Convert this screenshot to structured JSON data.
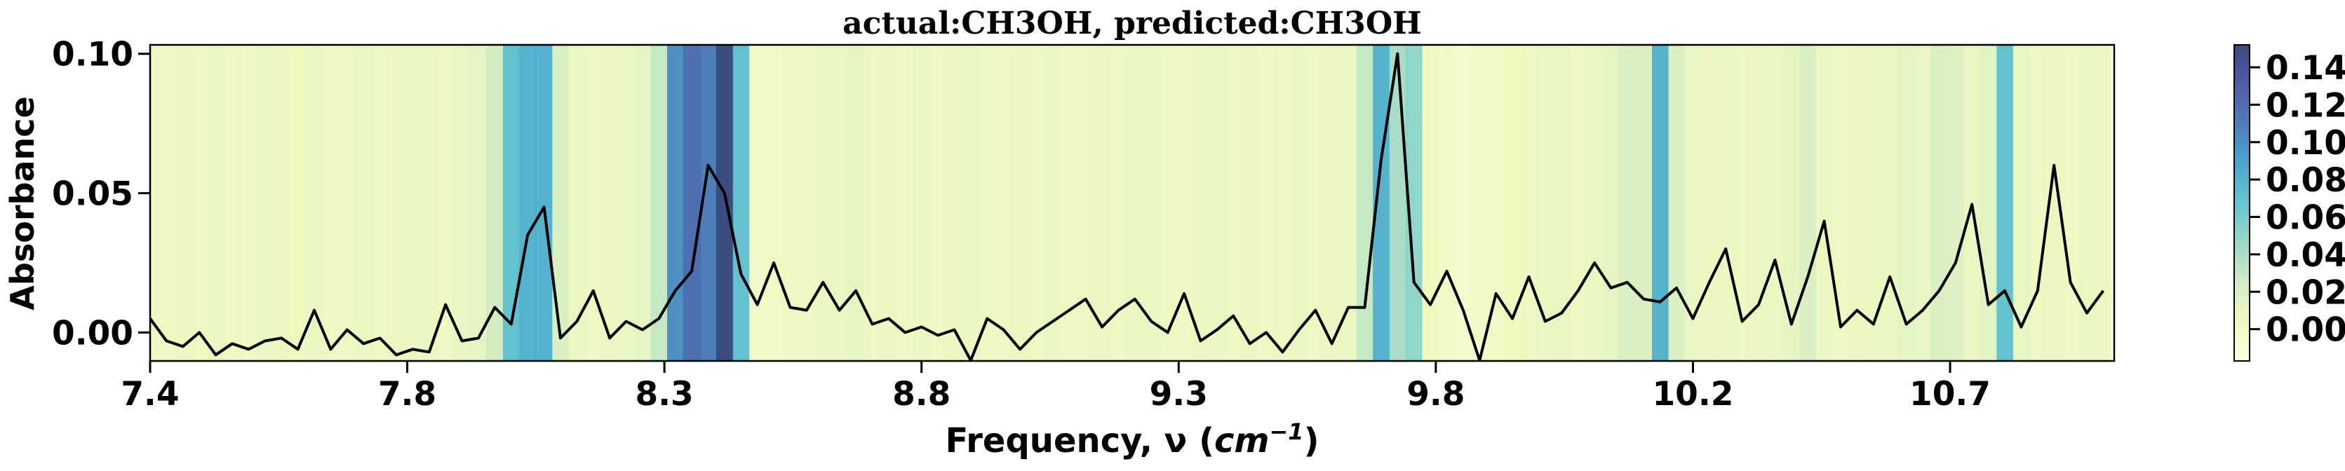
{
  "chart_data": {
    "type": "line",
    "title": "actual:CH3OH, predicted:CH3OH",
    "xlabel": [
      "Frequency, ν (",
      "cm",
      "−1",
      ")"
    ],
    "ylabel": "Absorbance",
    "xlim": [
      7.4,
      10.99
    ],
    "ylim": [
      -0.0102,
      0.1032
    ],
    "xticks": [
      {
        "value": 7.4,
        "label": "7.4"
      },
      {
        "value": 7.87,
        "label": "7.8"
      },
      {
        "value": 8.34,
        "label": "8.3"
      },
      {
        "value": 8.81,
        "label": "8.8"
      },
      {
        "value": 9.28,
        "label": "9.3"
      },
      {
        "value": 9.75,
        "label": "9.8"
      },
      {
        "value": 10.22,
        "label": "10.2"
      },
      {
        "value": 10.69,
        "label": "10.7"
      }
    ],
    "yticks": [
      {
        "value": 0,
        "label": "0.00"
      },
      {
        "value": 0.05,
        "label": "0.05"
      },
      {
        "value": 0.1,
        "label": "0.10"
      }
    ],
    "x": [
      7.4,
      7.43,
      7.46,
      7.49,
      7.52,
      7.55,
      7.58,
      7.61,
      7.64,
      7.67,
      7.7,
      7.73,
      7.76,
      7.79,
      7.82,
      7.85,
      7.88,
      7.91,
      7.94,
      7.97,
      8.0,
      8.03,
      8.06,
      8.09,
      8.12,
      8.15,
      8.18,
      8.21,
      8.24,
      8.27,
      8.3,
      8.33,
      8.36,
      8.39,
      8.42,
      8.45,
      8.48,
      8.51,
      8.54,
      8.57,
      8.6,
      8.63,
      8.66,
      8.69,
      8.72,
      8.75,
      8.78,
      8.81,
      8.84,
      8.87,
      8.9,
      8.93,
      8.96,
      8.99,
      9.02,
      9.05,
      9.08,
      9.11,
      9.14,
      9.17,
      9.2,
      9.23,
      9.26,
      9.29,
      9.32,
      9.35,
      9.38,
      9.41,
      9.44,
      9.47,
      9.5,
      9.53,
      9.56,
      9.59,
      9.62,
      9.65,
      9.68,
      9.71,
      9.74,
      9.77,
      9.8,
      9.83,
      9.86,
      9.89,
      9.92,
      9.95,
      9.98,
      10.01,
      10.04,
      10.07,
      10.1,
      10.13,
      10.16,
      10.19,
      10.22,
      10.25,
      10.28,
      10.31,
      10.34,
      10.37,
      10.4,
      10.43,
      10.46,
      10.49,
      10.52,
      10.55,
      10.58,
      10.61,
      10.64,
      10.67,
      10.7,
      10.73,
      10.76,
      10.79,
      10.82,
      10.85,
      10.88,
      10.91,
      10.94,
      10.97
    ],
    "series": [
      {
        "color": "#000000",
        "values": [
          0.005,
          -0.003,
          -0.005,
          0.0,
          -0.008,
          -0.004,
          -0.006,
          -0.003,
          -0.002,
          -0.006,
          0.008,
          -0.006,
          0.001,
          -0.004,
          -0.002,
          -0.008,
          -0.006,
          -0.007,
          0.01,
          -0.003,
          -0.002,
          0.009,
          0.003,
          0.035,
          0.045,
          -0.002,
          0.004,
          0.015,
          -0.002,
          0.004,
          0.001,
          0.005,
          0.015,
          0.022,
          0.06,
          0.05,
          0.021,
          0.01,
          0.025,
          0.009,
          0.008,
          0.018,
          0.008,
          0.015,
          0.003,
          0.005,
          0.0,
          0.002,
          -0.001,
          0.001,
          -0.01,
          0.005,
          0.001,
          -0.006,
          0.0,
          0.004,
          0.008,
          0.012,
          0.002,
          0.008,
          0.012,
          0.004,
          0.0,
          0.014,
          -0.003,
          0.001,
          0.006,
          -0.004,
          0.0,
          -0.007,
          0.001,
          0.008,
          -0.004,
          0.009,
          0.009,
          0.062,
          0.1,
          0.018,
          0.01,
          0.022,
          0.008,
          -0.01,
          0.014,
          0.005,
          0.02,
          0.004,
          0.007,
          0.015,
          0.025,
          0.016,
          0.018,
          0.012,
          0.011,
          0.016,
          0.005,
          0.018,
          0.03,
          0.004,
          0.01,
          0.026,
          0.003,
          0.02,
          0.04,
          0.002,
          0.008,
          0.003,
          0.02,
          0.003,
          0.008,
          0.015,
          0.025,
          0.046,
          0.01,
          0.015,
          0.002,
          0.015,
          0.06,
          0.018,
          0.007,
          0.015
        ]
      }
    ],
    "heatmap": {
      "colormap": "YlGnBu",
      "clim": [
        -0.017,
        0.152
      ],
      "values": [
        0.006,
        0.005,
        0.007,
        0.006,
        0.008,
        0.006,
        0.005,
        0.008,
        0.007,
        0.004,
        0.009,
        0.005,
        0.006,
        0.008,
        0.006,
        0.007,
        0.009,
        0.008,
        0.006,
        0.01,
        0.012,
        0.025,
        0.07,
        0.08,
        0.08,
        0.02,
        0.008,
        0.006,
        0.007,
        0.009,
        0.012,
        0.03,
        0.1,
        0.12,
        0.11,
        0.15,
        0.07,
        0.0,
        0.002,
        0.006,
        0.005,
        0.008,
        0.009,
        0.012,
        0.006,
        0.007,
        0.005,
        0.008,
        0.006,
        0.007,
        0.008,
        0.006,
        0.005,
        0.007,
        0.006,
        0.008,
        0.005,
        0.006,
        0.007,
        0.006,
        0.008,
        0.009,
        0.006,
        0.005,
        0.007,
        0.008,
        0.006,
        0.007,
        0.005,
        0.006,
        0.008,
        0.006,
        0.007,
        0.008,
        0.03,
        0.08,
        0.04,
        0.05,
        0.004,
        0.0,
        -0.002,
        0.0,
        0.002,
        0.004,
        0.006,
        0.008,
        0.01,
        0.006,
        0.008,
        0.012,
        0.02,
        0.02,
        0.08,
        0.02,
        0.01,
        0.007,
        0.008,
        0.006,
        0.009,
        0.007,
        0.012,
        0.02,
        0.008,
        0.006,
        0.007,
        0.008,
        0.009,
        0.012,
        0.01,
        0.02,
        0.018,
        0.008,
        0.015,
        0.07,
        0.01,
        0.006,
        0.007,
        0.006,
        0.008,
        0.007
      ],
      "ticks": [
        {
          "value": 0,
          "label": "0.00"
        },
        {
          "value": 0.02,
          "label": "0.02"
        },
        {
          "value": 0.04,
          "label": "0.04"
        },
        {
          "value": 0.06,
          "label": "0.06"
        },
        {
          "value": 0.08,
          "label": "0.08"
        },
        {
          "value": 0.1,
          "label": "0.10"
        },
        {
          "value": 0.12,
          "label": "0.12"
        },
        {
          "value": 0.14,
          "label": "0.14"
        }
      ]
    }
  }
}
